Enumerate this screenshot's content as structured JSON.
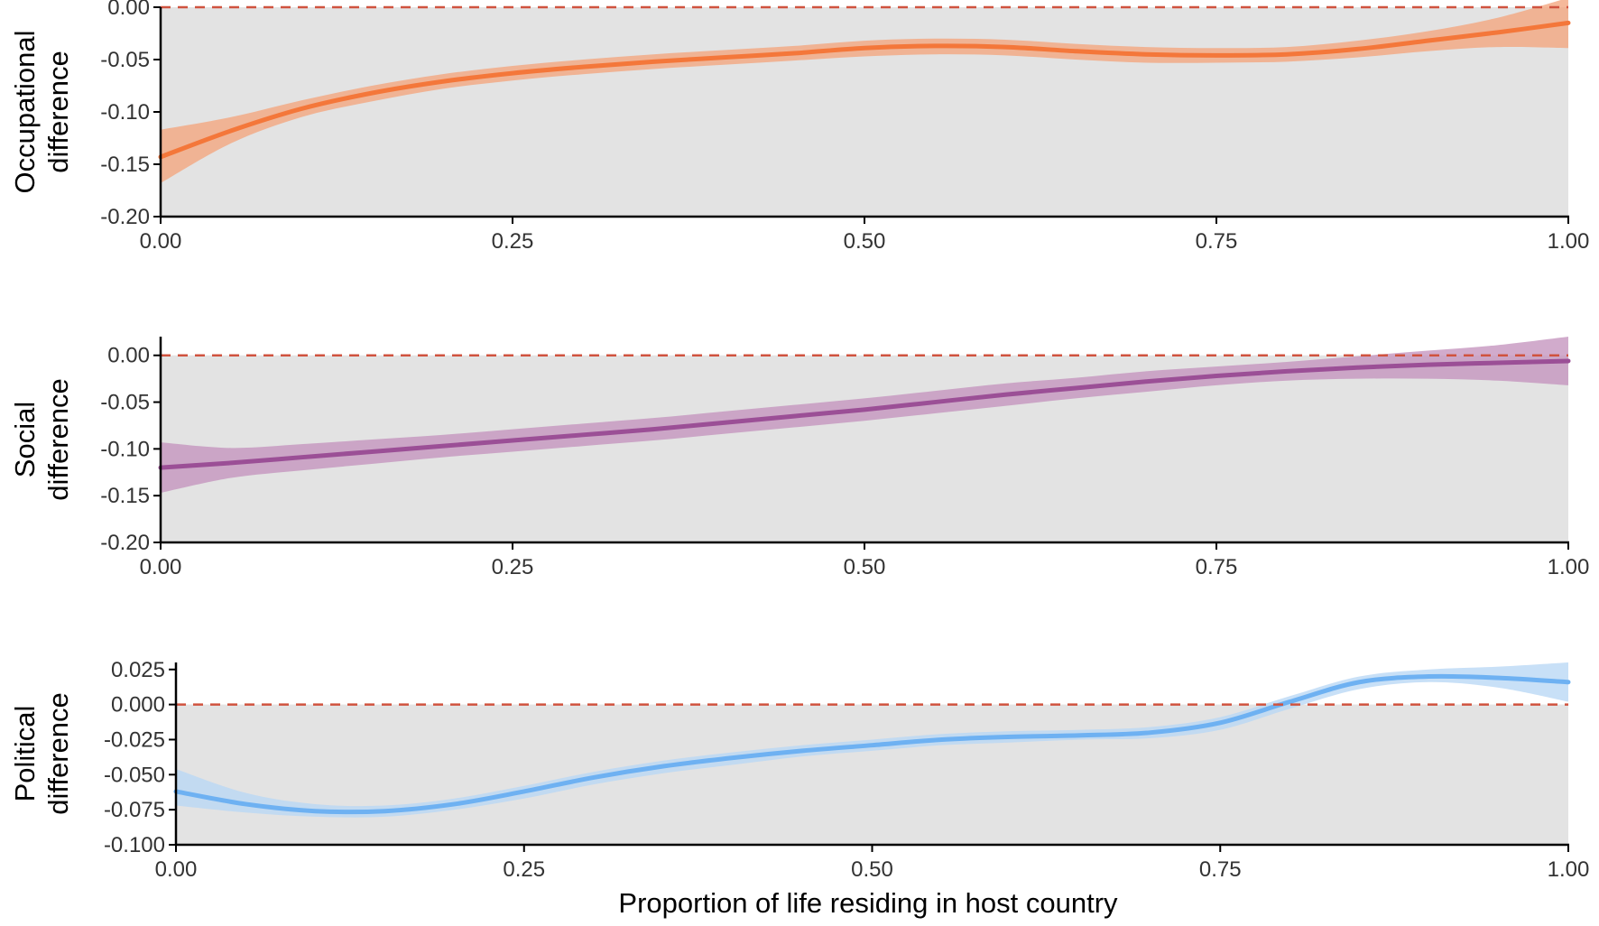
{
  "x_axis_label": "Proportion of life residing in host country",
  "colors": {
    "panel_background": "#e3e3e3",
    "reference_line": "#d0533f",
    "axis": "#000000"
  },
  "chart_data": [
    {
      "type": "line",
      "ylabel": [
        "Occupational",
        "difference"
      ],
      "xlim": [
        0,
        1
      ],
      "ylim": [
        -0.2,
        0.0
      ],
      "x_ticks": [
        "0.00",
        "0.25",
        "0.50",
        "0.75",
        "1.00"
      ],
      "y_ticks": [
        "0.00",
        "-0.05",
        "-0.10",
        "-0.15",
        "-0.20"
      ],
      "y_tick_values": [
        0.0,
        -0.05,
        -0.1,
        -0.15,
        -0.2
      ],
      "reference_line": 0.0,
      "grid": false,
      "series_color": "#f4773a",
      "band_color": "#f4a57e",
      "x": [
        0.0,
        0.05,
        0.1,
        0.15,
        0.2,
        0.25,
        0.3,
        0.35,
        0.4,
        0.45,
        0.5,
        0.55,
        0.6,
        0.65,
        0.7,
        0.75,
        0.8,
        0.85,
        0.9,
        0.95,
        1.0
      ],
      "y": [
        -0.143,
        -0.118,
        -0.097,
        -0.082,
        -0.071,
        -0.063,
        -0.057,
        -0.052,
        -0.048,
        -0.044,
        -0.039,
        -0.037,
        -0.038,
        -0.042,
        -0.045,
        -0.046,
        -0.045,
        -0.04,
        -0.032,
        -0.024,
        -0.015
      ],
      "lower": [
        -0.168,
        -0.13,
        -0.105,
        -0.09,
        -0.078,
        -0.07,
        -0.064,
        -0.059,
        -0.055,
        -0.051,
        -0.047,
        -0.045,
        -0.046,
        -0.05,
        -0.053,
        -0.053,
        -0.052,
        -0.048,
        -0.042,
        -0.038,
        -0.039
      ],
      "upper": [
        -0.117,
        -0.105,
        -0.089,
        -0.075,
        -0.064,
        -0.056,
        -0.05,
        -0.045,
        -0.041,
        -0.037,
        -0.032,
        -0.03,
        -0.031,
        -0.035,
        -0.038,
        -0.039,
        -0.038,
        -0.032,
        -0.023,
        -0.01,
        0.009
      ]
    },
    {
      "type": "line",
      "ylabel": [
        "Social",
        "difference"
      ],
      "xlim": [
        0,
        1
      ],
      "ylim": [
        -0.2,
        0.02
      ],
      "x_ticks": [
        "0.00",
        "0.25",
        "0.50",
        "0.75",
        "1.00"
      ],
      "y_ticks": [
        "0.00",
        "-0.05",
        "-0.10",
        "-0.15",
        "-0.20"
      ],
      "y_tick_values": [
        0.0,
        -0.05,
        -0.1,
        -0.15,
        -0.2
      ],
      "reference_line": 0.0,
      "grid": false,
      "series_color": "#9b4f96",
      "band_color": "#c493be",
      "x": [
        0.0,
        0.05,
        0.1,
        0.15,
        0.2,
        0.25,
        0.3,
        0.35,
        0.4,
        0.45,
        0.5,
        0.55,
        0.6,
        0.65,
        0.7,
        0.75,
        0.8,
        0.85,
        0.9,
        0.95,
        1.0
      ],
      "y": [
        -0.12,
        -0.115,
        -0.109,
        -0.103,
        -0.097,
        -0.091,
        -0.085,
        -0.079,
        -0.072,
        -0.065,
        -0.058,
        -0.05,
        -0.042,
        -0.035,
        -0.028,
        -0.022,
        -0.017,
        -0.013,
        -0.01,
        -0.008,
        -0.006
      ],
      "lower": [
        -0.147,
        -0.131,
        -0.123,
        -0.116,
        -0.109,
        -0.103,
        -0.097,
        -0.091,
        -0.084,
        -0.077,
        -0.07,
        -0.062,
        -0.054,
        -0.046,
        -0.039,
        -0.032,
        -0.027,
        -0.025,
        -0.025,
        -0.027,
        -0.032
      ],
      "upper": [
        -0.093,
        -0.099,
        -0.095,
        -0.09,
        -0.085,
        -0.079,
        -0.073,
        -0.067,
        -0.06,
        -0.053,
        -0.046,
        -0.038,
        -0.03,
        -0.024,
        -0.017,
        -0.012,
        -0.007,
        -0.001,
        0.005,
        0.011,
        0.02
      ]
    },
    {
      "type": "line",
      "ylabel": [
        "Political",
        "difference"
      ],
      "xlim": [
        0,
        1
      ],
      "ylim": [
        -0.1,
        0.03
      ],
      "x_ticks": [
        "0.00",
        "0.25",
        "0.50",
        "0.75",
        "1.00"
      ],
      "y_ticks": [
        "0.025",
        "0.000",
        "-0.025",
        "-0.050",
        "-0.075",
        "-0.100"
      ],
      "y_tick_values": [
        0.025,
        0.0,
        -0.025,
        -0.05,
        -0.075,
        -0.1
      ],
      "reference_line": 0.0,
      "grid": false,
      "series_color": "#6eb1f2",
      "band_color": "#b8d7f5",
      "x": [
        0.0,
        0.05,
        0.1,
        0.15,
        0.2,
        0.25,
        0.3,
        0.35,
        0.4,
        0.45,
        0.5,
        0.55,
        0.6,
        0.65,
        0.7,
        0.75,
        0.8,
        0.85,
        0.9,
        0.95,
        1.0
      ],
      "y": [
        -0.062,
        -0.071,
        -0.076,
        -0.076,
        -0.071,
        -0.062,
        -0.052,
        -0.044,
        -0.038,
        -0.033,
        -0.029,
        -0.025,
        -0.023,
        -0.022,
        -0.02,
        -0.013,
        0.002,
        0.016,
        0.02,
        0.019,
        0.016
      ],
      "lower": [
        -0.072,
        -0.077,
        -0.08,
        -0.08,
        -0.075,
        -0.067,
        -0.057,
        -0.049,
        -0.043,
        -0.037,
        -0.033,
        -0.029,
        -0.027,
        -0.025,
        -0.024,
        -0.018,
        -0.003,
        0.011,
        0.016,
        0.012,
        0.002
      ],
      "upper": [
        -0.046,
        -0.063,
        -0.071,
        -0.072,
        -0.067,
        -0.058,
        -0.048,
        -0.04,
        -0.034,
        -0.029,
        -0.025,
        -0.021,
        -0.019,
        -0.018,
        -0.016,
        -0.009,
        0.006,
        0.02,
        0.025,
        0.027,
        0.03
      ]
    }
  ]
}
